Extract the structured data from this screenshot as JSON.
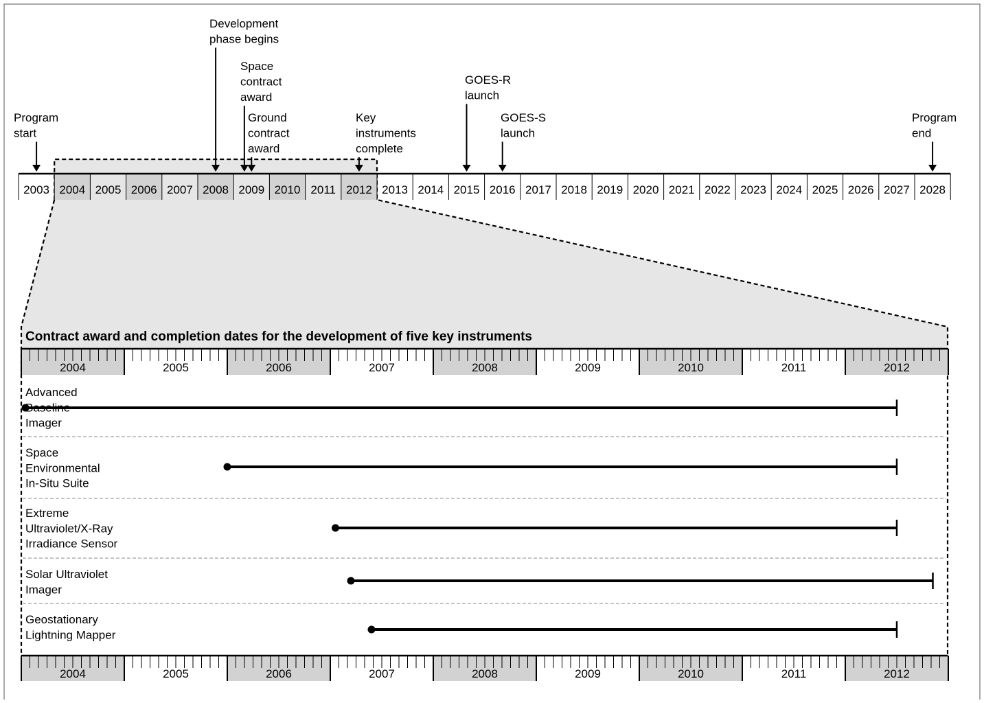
{
  "program_timeline": {
    "years": [
      "2003",
      "2004",
      "2005",
      "2006",
      "2007",
      "2008",
      "2009",
      "2010",
      "2011",
      "2012",
      "2013",
      "2014",
      "2015",
      "2016",
      "2017",
      "2018",
      "2019",
      "2020",
      "2021",
      "2022",
      "2023",
      "2024",
      "2025",
      "2026",
      "2027",
      "2028"
    ],
    "shaded_years": [
      "2004",
      "2006",
      "2008",
      "2010",
      "2012"
    ],
    "milestones": [
      {
        "id": "program-start",
        "lines": [
          "Program",
          "start"
        ],
        "year": 2003
      },
      {
        "id": "development-phase",
        "lines": [
          "Development",
          "phase begins"
        ],
        "year": 2008
      },
      {
        "id": "space-contract",
        "lines": [
          "Space",
          "contract",
          "award"
        ],
        "year": 2008.8
      },
      {
        "id": "ground-contract",
        "lines": [
          "Ground",
          "contract",
          "award"
        ],
        "year": 2009
      },
      {
        "id": "key-instruments",
        "lines": [
          "Key",
          "instruments",
          "complete"
        ],
        "year": 2012
      },
      {
        "id": "goes-r",
        "lines": [
          "GOES-R",
          "launch"
        ],
        "year": 2015
      },
      {
        "id": "goes-s",
        "lines": [
          "GOES-S",
          "launch"
        ],
        "year": 2016
      },
      {
        "id": "program-end",
        "lines": [
          "Program",
          "end"
        ],
        "year": 2028
      }
    ]
  },
  "detail": {
    "title": "Contract award and completion dates for the development of five key instruments",
    "years": [
      "2004",
      "2005",
      "2006",
      "2007",
      "2008",
      "2009",
      "2010",
      "2011",
      "2012"
    ],
    "shaded_years": [
      "2004",
      "2006",
      "2008",
      "2010",
      "2012"
    ],
    "instruments": [
      {
        "id": "abi",
        "lines": [
          "Advanced",
          "Baseline",
          "Imager"
        ],
        "start": 2004.04,
        "end": 2012.5
      },
      {
        "id": "seiss",
        "lines": [
          "Space",
          "Environmental",
          "In-Situ Suite"
        ],
        "start": 2006.0,
        "end": 2012.5
      },
      {
        "id": "exis",
        "lines": [
          "Extreme",
          "Ultraviolet/X-Ray",
          "Irradiance Sensor"
        ],
        "start": 2007.05,
        "end": 2012.5
      },
      {
        "id": "suvi",
        "lines": [
          "Solar Ultraviolet",
          "Imager"
        ],
        "start": 2007.2,
        "end": 2012.85
      },
      {
        "id": "glm",
        "lines": [
          "Geostationary",
          "Lightning Mapper"
        ],
        "start": 2007.4,
        "end": 2012.5
      }
    ]
  }
}
